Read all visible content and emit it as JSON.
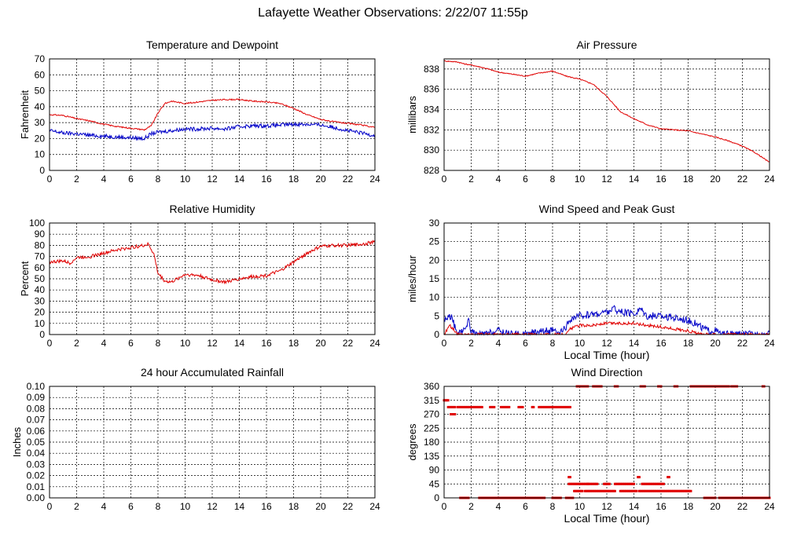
{
  "page": {
    "title": "Lafayette Weather Observations: 2/22/07 11:55p"
  },
  "colors": {
    "red": "#e00000",
    "blue": "#0000c8",
    "grid": "#000000",
    "frame": "#000000"
  },
  "chart_data": [
    {
      "id": "temp",
      "type": "line",
      "title": "Temperature and Dewpoint",
      "xlabel": "",
      "ylabel": "Fahrenheit",
      "xlim": [
        0,
        24
      ],
      "ylim": [
        0,
        70
      ],
      "xticks": [
        0,
        2,
        4,
        6,
        8,
        10,
        12,
        14,
        16,
        18,
        20,
        22,
        24
      ],
      "yticks": [
        0,
        10,
        20,
        30,
        40,
        50,
        60,
        70
      ],
      "grid": true,
      "series": [
        {
          "name": "Temperature",
          "color": "#e00000",
          "noise": 0.4,
          "x": [
            0,
            1,
            2,
            3,
            4,
            5,
            6,
            7,
            7.5,
            8,
            8.5,
            9,
            10,
            11,
            12,
            13,
            14,
            15,
            16,
            17,
            18,
            19,
            20,
            21,
            22,
            23,
            24
          ],
          "y": [
            35,
            34.5,
            32.5,
            31,
            29,
            27.5,
            26.5,
            25.5,
            28,
            36,
            42,
            43.5,
            42,
            43,
            44,
            44.5,
            44.5,
            43.5,
            43,
            42,
            39,
            35,
            32,
            30.5,
            29.5,
            28.5,
            27
          ]
        },
        {
          "name": "Dewpoint",
          "color": "#0000c8",
          "noise": 1.2,
          "x": [
            0,
            1,
            2,
            3,
            4,
            5,
            6,
            7,
            7.5,
            8,
            9,
            10,
            11,
            12,
            13,
            14,
            15,
            16,
            17,
            18,
            19,
            20,
            21,
            22,
            23,
            24
          ],
          "y": [
            25,
            23.5,
            23,
            22,
            21.5,
            21,
            20.5,
            20,
            23,
            24,
            25,
            26,
            26,
            26.5,
            26,
            27.5,
            28,
            28,
            28.5,
            29,
            29,
            28.5,
            27,
            25,
            23.5,
            22
          ]
        }
      ]
    },
    {
      "id": "pressure",
      "type": "line",
      "title": "Air Pressure",
      "xlabel": "",
      "ylabel": "millibars",
      "xlim": [
        0,
        24
      ],
      "ylim": [
        828,
        839
      ],
      "xticks": [
        0,
        2,
        4,
        6,
        8,
        10,
        12,
        14,
        16,
        18,
        20,
        22,
        24
      ],
      "yticks": [
        828,
        830,
        832,
        834,
        836,
        838
      ],
      "grid": true,
      "series": [
        {
          "name": "Pressure",
          "color": "#e00000",
          "noise": 0.05,
          "x": [
            0,
            1,
            1.5,
            2,
            3,
            4,
            5,
            6,
            7,
            8,
            9,
            10,
            11,
            12,
            13,
            14,
            15,
            16,
            17,
            18,
            19,
            20,
            21,
            22,
            23,
            24
          ],
          "y": [
            838.8,
            838.7,
            838.5,
            838.4,
            838.1,
            837.7,
            837.5,
            837.3,
            837.6,
            837.8,
            837.3,
            837.0,
            836.5,
            835.3,
            833.8,
            833.1,
            832.5,
            832.1,
            832.0,
            831.9,
            831.6,
            831.3,
            830.9,
            830.4,
            829.7,
            828.8
          ]
        }
      ]
    },
    {
      "id": "humidity",
      "type": "line",
      "title": "Relative Humidity",
      "xlabel": "",
      "ylabel": "Percent",
      "xlim": [
        0,
        24
      ],
      "ylim": [
        0,
        100
      ],
      "xticks": [
        0,
        2,
        4,
        6,
        8,
        10,
        12,
        14,
        16,
        18,
        20,
        22,
        24
      ],
      "yticks": [
        0,
        10,
        20,
        30,
        40,
        50,
        60,
        70,
        80,
        90,
        100
      ],
      "grid": true,
      "series": [
        {
          "name": "Relative Humidity",
          "color": "#e00000",
          "noise": 1.5,
          "x": [
            0,
            1,
            1.5,
            2,
            3,
            4,
            5,
            6,
            7,
            7.3,
            7.7,
            8,
            8.5,
            9,
            10,
            11,
            12,
            13,
            14,
            15,
            16,
            17,
            18,
            19,
            20,
            21,
            22,
            23,
            24
          ],
          "y": [
            65,
            66,
            64,
            69,
            70,
            73,
            76,
            78,
            80,
            81,
            72,
            55,
            48,
            47,
            54,
            53,
            49,
            47,
            50,
            52,
            53,
            57,
            65,
            73,
            79,
            80,
            80,
            81,
            83
          ]
        }
      ]
    },
    {
      "id": "wind",
      "type": "line",
      "title": "Wind Speed and Peak Gust",
      "xlabel": "Local Time (hour)",
      "ylabel": "miles/hour",
      "xlim": [
        0,
        24
      ],
      "ylim": [
        0,
        30
      ],
      "xticks": [
        0,
        2,
        4,
        6,
        8,
        10,
        12,
        14,
        16,
        18,
        20,
        22,
        24
      ],
      "yticks": [
        0,
        5,
        10,
        15,
        20,
        25,
        30
      ],
      "grid": true,
      "series": [
        {
          "name": "Peak Gust",
          "color": "#0000c8",
          "noise": 1.0,
          "x": [
            0,
            0.5,
            0.8,
            1,
            1.5,
            1.8,
            2,
            2.3,
            3,
            4,
            5,
            6,
            7,
            8,
            8.5,
            9,
            9.3,
            10,
            11,
            12,
            12.5,
            13,
            14,
            14.5,
            15,
            16,
            17,
            18,
            19,
            19.5,
            20,
            20.5,
            21,
            22,
            23,
            24
          ],
          "y": [
            4,
            5,
            2,
            0,
            1,
            4,
            1,
            0,
            0,
            1,
            0,
            0,
            1,
            1,
            0,
            2,
            4,
            5,
            5.5,
            6,
            7,
            6,
            5.5,
            7,
            5,
            5,
            4.5,
            4,
            2,
            1,
            1,
            0,
            0,
            0,
            0,
            0
          ]
        },
        {
          "name": "Wind Speed",
          "color": "#e00000",
          "noise": 0.4,
          "x": [
            0,
            0.4,
            0.8,
            1,
            2,
            3,
            9,
            9.3,
            10,
            11,
            12,
            13,
            14,
            15,
            16,
            17,
            18,
            18.5,
            19,
            24
          ],
          "y": [
            0,
            2.5,
            1,
            0,
            0,
            0,
            0,
            1.5,
            2.5,
            2.5,
            3,
            3,
            3,
            2.5,
            2,
            1.5,
            1,
            0.5,
            0,
            0
          ]
        }
      ]
    },
    {
      "id": "rain",
      "type": "line",
      "title": "24 hour Accumulated Rainfall",
      "xlabel": "",
      "ylabel": "Inches",
      "xlim": [
        0,
        24
      ],
      "ylim": [
        0,
        0.1
      ],
      "xticks": [
        0,
        2,
        4,
        6,
        8,
        10,
        12,
        14,
        16,
        18,
        20,
        22,
        24
      ],
      "yticks": [
        0.0,
        0.01,
        0.02,
        0.03,
        0.04,
        0.05,
        0.06,
        0.07,
        0.08,
        0.09,
        0.1
      ],
      "ytick_labels": [
        "0.00",
        "0.01",
        "0.02",
        "0.03",
        "0.04",
        "0.05",
        "0.06",
        "0.07",
        "0.08",
        "0.09",
        "0.10"
      ],
      "grid": true,
      "series": [
        {
          "name": "Rainfall",
          "color": "#e00000",
          "noise": 0,
          "x": [
            0,
            24
          ],
          "y": [
            0,
            0
          ]
        }
      ]
    },
    {
      "id": "direction",
      "type": "scatter",
      "title": "Wind Direction",
      "xlabel": "Local Time (hour)",
      "ylabel": "degrees",
      "xlim": [
        0,
        24
      ],
      "ylim": [
        0,
        360
      ],
      "xticks": [
        0,
        2,
        4,
        6,
        8,
        10,
        12,
        14,
        16,
        18,
        20,
        22,
        24
      ],
      "yticks": [
        0,
        45,
        90,
        135,
        180,
        225,
        270,
        315,
        360
      ],
      "grid": true,
      "series": [
        {
          "name": "Direction",
          "color": "#e00000",
          "runs": [
            {
              "y": 315,
              "from": 0.0,
              "to": 0.3
            },
            {
              "y": 293,
              "from": 0.3,
              "to": 0.8
            },
            {
              "y": 270,
              "from": 0.5,
              "to": 0.8
            },
            {
              "y": 293,
              "from": 1.0,
              "to": 2.8
            },
            {
              "y": 293,
              "from": 3.4,
              "to": 3.7
            },
            {
              "y": 293,
              "from": 4.2,
              "to": 4.8
            },
            {
              "y": 293,
              "from": 5.5,
              "to": 5.8
            },
            {
              "y": 293,
              "from": 6.5,
              "to": 6.6
            },
            {
              "y": 293,
              "from": 7.0,
              "to": 9.3
            },
            {
              "y": 0,
              "from": 1.2,
              "to": 1.8
            },
            {
              "y": 0,
              "from": 2.6,
              "to": 7.4
            },
            {
              "y": 0,
              "from": 8.0,
              "to": 8.6
            },
            {
              "y": 0,
              "from": 9.0,
              "to": 9.5
            },
            {
              "y": 67,
              "from": 9.2,
              "to": 9.3
            },
            {
              "y": 45,
              "from": 9.2,
              "to": 10.6
            },
            {
              "y": 22,
              "from": 9.6,
              "to": 10.2
            },
            {
              "y": 360,
              "from": 9.8,
              "to": 10.6
            },
            {
              "y": 45,
              "from": 10.6,
              "to": 11.3
            },
            {
              "y": 22,
              "from": 10.4,
              "to": 12.6
            },
            {
              "y": 360,
              "from": 11.0,
              "to": 11.6
            },
            {
              "y": 45,
              "from": 11.8,
              "to": 12.2
            },
            {
              "y": 360,
              "from": 12.6,
              "to": 12.8
            },
            {
              "y": 45,
              "from": 12.6,
              "to": 14.0
            },
            {
              "y": 22,
              "from": 13.0,
              "to": 14.2
            },
            {
              "y": 360,
              "from": 14.5,
              "to": 14.8
            },
            {
              "y": 67,
              "from": 14.3,
              "to": 14.4
            },
            {
              "y": 45,
              "from": 14.6,
              "to": 16.2
            },
            {
              "y": 22,
              "from": 14.4,
              "to": 18.2
            },
            {
              "y": 67,
              "from": 16.5,
              "to": 16.6
            },
            {
              "y": 360,
              "from": 15.8,
              "to": 16.0
            },
            {
              "y": 360,
              "from": 17.0,
              "to": 17.2
            },
            {
              "y": 360,
              "from": 18.2,
              "to": 21.0
            },
            {
              "y": 360,
              "from": 21.2,
              "to": 21.6
            },
            {
              "y": 360,
              "from": 23.5,
              "to": 23.6
            },
            {
              "y": 0,
              "from": 19.2,
              "to": 20.0
            },
            {
              "y": 0,
              "from": 20.3,
              "to": 24.0
            }
          ]
        }
      ]
    }
  ]
}
